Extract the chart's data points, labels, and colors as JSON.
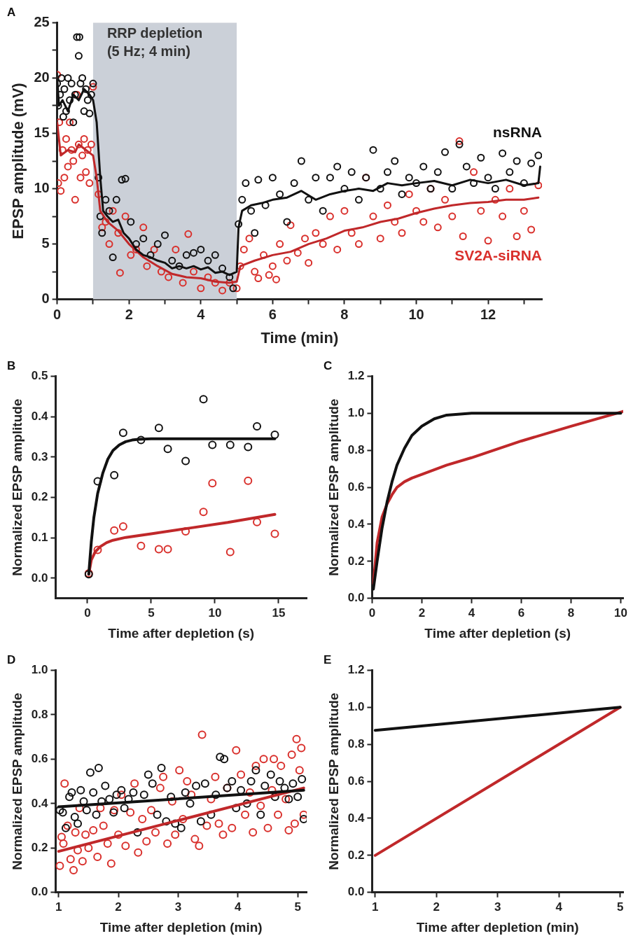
{
  "chart_data": [
    {
      "type": "scatter",
      "title": "A",
      "xlabel": "Time (min)",
      "ylabel": "EPSP amplitude (mV)",
      "legend": false,
      "xlim": [
        0,
        13.5
      ],
      "xticks": [
        0,
        {
          "value": 1,
          "label": null
        },
        2,
        {
          "value": 3,
          "label": null
        },
        4,
        {
          "value": 5,
          "label": null
        },
        6,
        {
          "value": 7,
          "label": null
        },
        8,
        {
          "value": 9,
          "label": null
        },
        10,
        {
          "value": 11,
          "label": null
        },
        12,
        {
          "value": 13,
          "label": null
        }
      ],
      "ylim": [
        0,
        25
      ],
      "yticks": [
        0,
        {
          "value": 2.5,
          "label": null
        },
        5,
        {
          "value": 7.5,
          "label": null
        },
        10,
        {
          "value": 12.5,
          "label": null
        },
        15,
        {
          "value": 17.5,
          "label": null
        },
        20,
        {
          "value": 22.5,
          "label": null
        },
        25
      ],
      "bands": [
        {
          "axis": "x",
          "from": 1,
          "to": 5,
          "label": "RRP depletion (5 Hz; 4 min)",
          "color": "#cbd0d8"
        }
      ],
      "series": [
        {
          "name": "nsRNA",
          "marker": "circle",
          "color": "#111111",
          "x": [
            0,
            0.03,
            0.08,
            0.12,
            0.17,
            0.2,
            0.25,
            0.3,
            0.35,
            0.4,
            0.45,
            0.5,
            0.55,
            0.6,
            0.62,
            0.65,
            0.7,
            0.75,
            0.8,
            0.85,
            0.9,
            0.95,
            1.0,
            1.15,
            1.2,
            1.25,
            1.35,
            1.45,
            1.55,
            1.65,
            1.8,
            1.9,
            2.05,
            2.2,
            2.4,
            2.6,
            2.8,
            3.0,
            3.2,
            3.4,
            3.6,
            3.8,
            4.0,
            4.2,
            4.4,
            4.6,
            4.8,
            4.9,
            5.05,
            5.15,
            5.25,
            5.4,
            5.5,
            5.6,
            5.8,
            6.0,
            6.2,
            6.4,
            6.6,
            6.8,
            7.0,
            7.2,
            7.4,
            7.6,
            7.8,
            8.0,
            8.2,
            8.4,
            8.6,
            8.8,
            9.0,
            9.2,
            9.4,
            9.6,
            9.8,
            10.0,
            10.2,
            10.4,
            10.6,
            10.8,
            11.0,
            11.2,
            11.4,
            11.6,
            11.8,
            12.0,
            12.2,
            12.4,
            12.6,
            12.8,
            13.0,
            13.2,
            13.4
          ],
          "values": [
            19.5,
            17.5,
            18.5,
            20,
            16.5,
            19,
            17,
            20,
            18,
            19.5,
            16,
            18.5,
            23.7,
            22,
            23.7,
            19.5,
            20,
            17,
            19,
            18,
            16.8,
            18.5,
            19.5,
            11,
            7.5,
            6,
            9,
            8,
            3.8,
            9,
            10.8,
            10.9,
            7,
            5,
            5.5,
            4,
            5,
            5.8,
            3.5,
            3,
            4,
            4.2,
            4.5,
            3.5,
            4,
            2.8,
            2,
            1,
            6.8,
            9,
            10.5,
            8,
            6,
            10.8,
            8.5,
            11,
            9.5,
            7,
            10.5,
            12.5,
            9,
            11,
            8,
            11,
            12,
            10,
            11.5,
            9,
            11,
            13.5,
            10,
            11.5,
            12.5,
            9.5,
            11,
            10.5,
            12,
            10,
            11.5,
            13.3,
            10,
            14,
            12,
            10.5,
            12.8,
            11,
            10,
            13.2,
            11.5,
            12.5,
            10.5,
            12.3,
            13
          ]
        },
        {
          "name": "SV2A-siRNA",
          "marker": "circle",
          "color": "#d9302c",
          "x": [
            0,
            0.03,
            0.06,
            0.1,
            0.15,
            0.2,
            0.25,
            0.3,
            0.35,
            0.4,
            0.45,
            0.5,
            0.55,
            0.6,
            0.65,
            0.7,
            0.75,
            0.8,
            0.85,
            0.9,
            0.95,
            1.0,
            1.15,
            1.25,
            1.35,
            1.45,
            1.55,
            1.7,
            1.75,
            1.9,
            2.05,
            2.2,
            2.4,
            2.5,
            2.7,
            2.9,
            3.1,
            3.3,
            3.5,
            3.65,
            3.8,
            4.0,
            4.2,
            4.4,
            4.6,
            4.8,
            5.0,
            5.1,
            5.2,
            5.35,
            5.5,
            5.6,
            5.75,
            5.9,
            6.0,
            6.1,
            6.2,
            6.4,
            6.5,
            6.7,
            6.9,
            7.0,
            7.2,
            7.4,
            7.6,
            7.8,
            8.0,
            8.2,
            8.4,
            8.6,
            8.8,
            9.0,
            9.2,
            9.4,
            9.6,
            9.8,
            10.0,
            10.2,
            10.4,
            10.6,
            10.8,
            11.0,
            11.2,
            11.3,
            11.6,
            11.8,
            12.0,
            12.2,
            12.4,
            12.6,
            12.8,
            13.0,
            13.2,
            13.4
          ],
          "values": [
            20.3,
            10.5,
            16,
            9.8,
            13.5,
            11,
            14.5,
            12,
            16,
            13.5,
            12.5,
            9,
            18.5,
            14,
            11,
            13,
            14.5,
            11.5,
            13.5,
            10.5,
            14,
            19.2,
            9.5,
            6.5,
            7,
            5,
            8,
            6,
            2.4,
            7.5,
            4,
            4.5,
            6.5,
            3,
            4.5,
            2.5,
            2,
            4.5,
            1.5,
            5.9,
            2.5,
            1,
            2,
            1.5,
            0.8,
            1.5,
            1,
            3,
            4.5,
            5.5,
            2.5,
            1.9,
            4,
            2.2,
            3,
            1.8,
            5,
            3.5,
            6.7,
            4.2,
            5.5,
            3.3,
            6,
            5,
            7.5,
            4.5,
            8,
            6,
            5,
            11,
            7.5,
            5.5,
            8.5,
            7,
            6,
            9.5,
            8,
            7,
            10,
            6.5,
            9,
            7.5,
            14.3,
            5.7,
            11.5,
            8,
            5.3,
            9,
            7.5,
            10,
            5.7,
            8,
            6.3,
            10.3
          ]
        },
        {
          "type": "line",
          "color": "#111111",
          "x": [
            0,
            0.05,
            0.15,
            0.3,
            0.45,
            0.6,
            0.75,
            0.9,
            1.0,
            1.1,
            1.2,
            1.28,
            1.4,
            1.55,
            1.7,
            1.85,
            2.0,
            2.2,
            2.4,
            2.6,
            2.8,
            3.0,
            3.2,
            3.4,
            3.6,
            3.8,
            4.0,
            4.2,
            4.4,
            4.6,
            4.8,
            5.0,
            5.05,
            5.15,
            5.4,
            5.7,
            6.0,
            6.4,
            6.8,
            7.2,
            7.6,
            8.0,
            8.4,
            8.8,
            9.2,
            9.6,
            10.0,
            10.5,
            11.0,
            11.5,
            12.0,
            12.5,
            13.0,
            13.4,
            13.45
          ],
          "values": [
            20,
            17.5,
            18,
            17,
            18.5,
            18,
            19,
            18.5,
            18,
            16,
            11,
            8,
            7.5,
            7,
            7.2,
            6,
            5.5,
            4.5,
            4,
            3.8,
            3.5,
            3.3,
            2.8,
            3,
            2.8,
            3,
            2.7,
            2.9,
            2.4,
            2.5,
            2.2,
            2.5,
            6.5,
            8,
            8.5,
            8.7,
            9,
            9.2,
            9.8,
            9,
            9.5,
            9.8,
            10,
            9.8,
            10.5,
            10.3,
            10.5,
            10.7,
            10.3,
            10.8,
            10.5,
            10.8,
            10.3,
            10.5,
            12
          ]
        },
        {
          "type": "line",
          "color": "#c0282a",
          "x": [
            0,
            0.1,
            0.3,
            0.5,
            0.6,
            0.8,
            1.0,
            1.1,
            1.2,
            1.4,
            1.7,
            2.0,
            2.4,
            2.8,
            3.2,
            3.6,
            4.0,
            4.4,
            4.8,
            5.0,
            5.1,
            5.5,
            6.0,
            6.5,
            7.0,
            7.5,
            8.0,
            8.5,
            9.0,
            9.5,
            10.0,
            10.5,
            11.0,
            11.5,
            12.0,
            12.5,
            13.0,
            13.4
          ],
          "values": [
            16,
            13,
            13.5,
            13.3,
            14,
            13.5,
            13,
            11,
            8,
            7,
            6.2,
            5,
            3.8,
            3,
            2.3,
            2,
            1.9,
            1.6,
            1.5,
            1.6,
            3,
            3.5,
            4,
            4.3,
            5,
            5.5,
            6.2,
            6.5,
            7,
            7.3,
            7.8,
            8.2,
            8.5,
            8.7,
            8.8,
            9,
            9,
            9.2
          ]
        }
      ]
    },
    {
      "type": "scatter",
      "title": "B",
      "xlabel": "Time after depletion (s)",
      "ylabel": "Normalized EPSP amplitude",
      "legend": false,
      "xlim": [
        -2.5,
        17.2
      ],
      "xticks": [
        0,
        5,
        10,
        15
      ],
      "ylim": [
        -0.05,
        0.5
      ],
      "yticks": [
        {
          "value": 0,
          "label": "0.0"
        },
        0.1,
        0.2,
        0.3,
        0.4,
        0.5
      ],
      "series": [
        {
          "marker": "circle",
          "color": "#111111",
          "x": [
            0.1,
            0.8,
            2.1,
            2.8,
            4.2,
            5.6,
            6.3,
            7.7,
            9.1,
            9.8,
            11.2,
            12.6,
            13.3,
            14.7
          ],
          "values": [
            0.01,
            0.24,
            0.255,
            0.36,
            0.342,
            0.372,
            0.32,
            0.29,
            0.443,
            0.33,
            0.33,
            0.325,
            0.376,
            0.355
          ]
        },
        {
          "marker": "circle",
          "color": "#d9302c",
          "x": [
            0.1,
            0.8,
            2.1,
            2.8,
            4.2,
            5.6,
            6.3,
            7.7,
            9.1,
            9.8,
            11.2,
            12.6,
            13.3,
            14.7
          ],
          "values": [
            0.012,
            0.07,
            0.118,
            0.128,
            0.08,
            0.072,
            0.072,
            0.116,
            0.164,
            0.235,
            0.065,
            0.241,
            0.139,
            0.11
          ]
        },
        {
          "type": "line",
          "color": "#111111",
          "x": [
            0.1,
            0.3,
            0.5,
            0.8,
            1.2,
            1.6,
            2,
            2.5,
            3,
            3.5,
            4,
            5,
            7,
            10,
            14.7
          ],
          "values": [
            0.01,
            0.09,
            0.15,
            0.21,
            0.26,
            0.295,
            0.316,
            0.33,
            0.338,
            0.342,
            0.344,
            0.345,
            0.345,
            0.345,
            0.345
          ]
        },
        {
          "type": "line",
          "color": "#c0282a",
          "x": [
            0.1,
            0.3,
            0.6,
            1,
            1.5,
            2,
            3,
            5,
            8,
            11,
            14.7
          ],
          "values": [
            0.01,
            0.045,
            0.065,
            0.078,
            0.088,
            0.094,
            0.101,
            0.11,
            0.124,
            0.138,
            0.158
          ]
        }
      ]
    },
    {
      "type": "line",
      "title": "C",
      "xlabel": "Time after depletion (s)",
      "ylabel": "Normalized EPSP amplitude",
      "legend": false,
      "xlim": [
        0,
        10.1
      ],
      "xticks": [
        0,
        2,
        4,
        6,
        8,
        10
      ],
      "ylim": [
        0,
        1.2
      ],
      "yticks": [
        {
          "value": 0,
          "label": "0.0"
        },
        0.2,
        0.4,
        0.6,
        0.8,
        {
          "value": 1,
          "label": "1.0"
        },
        1.2
      ],
      "series": [
        {
          "color": "#111111",
          "x": [
            0.05,
            0.2,
            0.4,
            0.6,
            0.8,
            1,
            1.3,
            1.6,
            2,
            2.5,
            3,
            4,
            6,
            10
          ],
          "values": [
            0.05,
            0.2,
            0.38,
            0.52,
            0.63,
            0.72,
            0.81,
            0.88,
            0.93,
            0.97,
            0.99,
            1.0,
            1.0,
            1.0
          ]
        },
        {
          "color": "#c0282a",
          "x": [
            0.05,
            0.2,
            0.4,
            0.6,
            0.8,
            1,
            1.3,
            1.6,
            2,
            3,
            4,
            6,
            8,
            10.1
          ],
          "values": [
            0.08,
            0.3,
            0.44,
            0.51,
            0.56,
            0.6,
            0.63,
            0.65,
            0.67,
            0.72,
            0.76,
            0.85,
            0.93,
            1.01
          ]
        }
      ]
    },
    {
      "type": "scatter",
      "title": "D",
      "xlabel": "Time after depletion (min)",
      "ylabel": "Normalized EPSP amplitude",
      "legend": false,
      "xlim": [
        0.95,
        5.15
      ],
      "xticks": [
        1,
        2,
        3,
        4,
        5
      ],
      "ylim": [
        0,
        1
      ],
      "yticks": [
        {
          "value": 0,
          "label": "0.0"
        },
        0.2,
        0.4,
        0.6,
        0.8,
        {
          "value": 1,
          "label": "1.0"
        }
      ],
      "series": [
        {
          "marker": "circle",
          "color": "#111111",
          "x": [
            1.02,
            1.07,
            1.12,
            1.18,
            1.22,
            1.27,
            1.32,
            1.37,
            1.42,
            1.47,
            1.53,
            1.58,
            1.63,
            1.67,
            1.72,
            1.78,
            1.85,
            1.92,
            1.97,
            2.05,
            2.1,
            2.17,
            2.25,
            2.32,
            2.43,
            2.5,
            2.57,
            2.65,
            2.72,
            2.8,
            2.88,
            2.95,
            3.05,
            3.12,
            3.2,
            3.3,
            3.38,
            3.45,
            3.55,
            3.63,
            3.7,
            3.77,
            3.82,
            3.9,
            3.97,
            4.05,
            4.15,
            4.22,
            4.3,
            4.38,
            4.45,
            4.55,
            4.62,
            4.7,
            4.78,
            4.85,
            4.92,
            5.0,
            5.07,
            5.1
          ],
          "values": [
            0.37,
            0.36,
            0.29,
            0.43,
            0.45,
            0.34,
            0.31,
            0.46,
            0.41,
            0.37,
            0.54,
            0.45,
            0.35,
            0.56,
            0.41,
            0.48,
            0.42,
            0.36,
            0.44,
            0.46,
            0.38,
            0.42,
            0.45,
            0.27,
            0.44,
            0.53,
            0.49,
            0.35,
            0.56,
            0.32,
            0.43,
            0.31,
            0.29,
            0.45,
            0.4,
            0.48,
            0.32,
            0.49,
            0.35,
            0.44,
            0.61,
            0.6,
            0.47,
            0.5,
            0.38,
            0.46,
            0.4,
            0.5,
            0.55,
            0.35,
            0.48,
            0.53,
            0.43,
            0.5,
            0.47,
            0.42,
            0.49,
            0.43,
            0.51,
            0.33
          ]
        },
        {
          "marker": "circle",
          "color": "#d9302c",
          "x": [
            1.02,
            1.05,
            1.08,
            1.1,
            1.15,
            1.2,
            1.25,
            1.28,
            1.32,
            1.35,
            1.4,
            1.45,
            1.5,
            1.58,
            1.65,
            1.7,
            1.75,
            1.82,
            1.88,
            1.93,
            2.0,
            2.05,
            2.12,
            2.2,
            2.27,
            2.33,
            2.4,
            2.47,
            2.55,
            2.62,
            2.7,
            2.75,
            2.82,
            2.9,
            2.95,
            3.02,
            3.08,
            3.15,
            3.22,
            3.28,
            3.35,
            3.4,
            3.48,
            3.55,
            3.62,
            3.68,
            3.75,
            3.82,
            3.9,
            3.97,
            4.05,
            4.12,
            4.2,
            4.25,
            4.3,
            4.38,
            4.43,
            4.5,
            4.57,
            4.6,
            4.67,
            4.72,
            4.8,
            4.85,
            4.9,
            4.95,
            4.98,
            5.03,
            5.06,
            5.1
          ],
          "values": [
            0.12,
            0.25,
            0.22,
            0.49,
            0.3,
            0.15,
            0.1,
            0.27,
            0.19,
            0.38,
            0.14,
            0.26,
            0.2,
            0.28,
            0.16,
            0.38,
            0.3,
            0.22,
            0.13,
            0.37,
            0.26,
            0.44,
            0.21,
            0.36,
            0.49,
            0.18,
            0.33,
            0.23,
            0.37,
            0.27,
            0.47,
            0.52,
            0.22,
            0.41,
            0.26,
            0.55,
            0.33,
            0.5,
            0.44,
            0.24,
            0.21,
            0.71,
            0.3,
            0.42,
            0.52,
            0.31,
            0.26,
            0.47,
            0.29,
            0.64,
            0.53,
            0.35,
            0.45,
            0.27,
            0.57,
            0.39,
            0.6,
            0.29,
            0.46,
            0.6,
            0.35,
            0.57,
            0.42,
            0.28,
            0.62,
            0.31,
            0.69,
            0.55,
            0.65,
            0.35
          ]
        },
        {
          "type": "line",
          "color": "#111111",
          "x": [
            1,
            5.1
          ],
          "values": [
            0.385,
            0.46
          ]
        },
        {
          "type": "line",
          "color": "#c0282a",
          "x": [
            1,
            5.1
          ],
          "values": [
            0.185,
            0.47
          ]
        }
      ]
    },
    {
      "type": "line",
      "title": "E",
      "xlabel": "Time after depletion (min)",
      "ylabel": "Normalized EPSP amplitude",
      "legend": false,
      "xlim": [
        0.95,
        5.05
      ],
      "xticks": [
        1,
        2,
        3,
        4,
        5
      ],
      "ylim": [
        0,
        1.2
      ],
      "yticks": [
        {
          "value": 0,
          "label": "0.0"
        },
        0.2,
        0.4,
        0.6,
        0.8,
        {
          "value": 1,
          "label": "1.0"
        },
        1.2
      ],
      "series": [
        {
          "color": "#111111",
          "x": [
            1,
            5
          ],
          "values": [
            0.875,
            1.0
          ]
        },
        {
          "color": "#c0282a",
          "x": [
            1,
            5
          ],
          "values": [
            0.2,
            1.0
          ]
        }
      ]
    }
  ]
}
